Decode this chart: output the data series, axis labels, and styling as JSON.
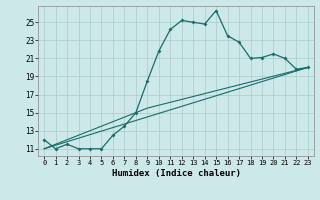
{
  "xlabel": "Humidex (Indice chaleur)",
  "ylabel": "",
  "bg_color": "#cce8e8",
  "grid_color": "#aacccc",
  "line_color": "#1a6b6b",
  "x_ticks": [
    0,
    1,
    2,
    3,
    4,
    5,
    6,
    7,
    8,
    9,
    10,
    11,
    12,
    13,
    14,
    15,
    16,
    17,
    18,
    19,
    20,
    21,
    22,
    23
  ],
  "y_ticks": [
    11,
    13,
    15,
    17,
    19,
    21,
    23,
    25
  ],
  "xlim": [
    -0.5,
    23.5
  ],
  "ylim": [
    10.2,
    26.8
  ],
  "line1_x": [
    0,
    1,
    2,
    3,
    4,
    5,
    6,
    7,
    8,
    9,
    10,
    11,
    12,
    13,
    14,
    15,
    16,
    17,
    18,
    19,
    20,
    21,
    22,
    23
  ],
  "line1_y": [
    12.0,
    11.0,
    11.5,
    11.0,
    11.0,
    11.0,
    12.5,
    13.5,
    15.0,
    18.5,
    21.8,
    24.2,
    25.2,
    25.0,
    24.8,
    26.3,
    23.5,
    22.8,
    21.0,
    21.1,
    21.5,
    21.0,
    19.8,
    20.0
  ],
  "line2_x": [
    0,
    23
  ],
  "line2_y": [
    11.0,
    20.0
  ],
  "line3_x": [
    0,
    9,
    23
  ],
  "line3_y": [
    11.0,
    15.5,
    20.0
  ]
}
